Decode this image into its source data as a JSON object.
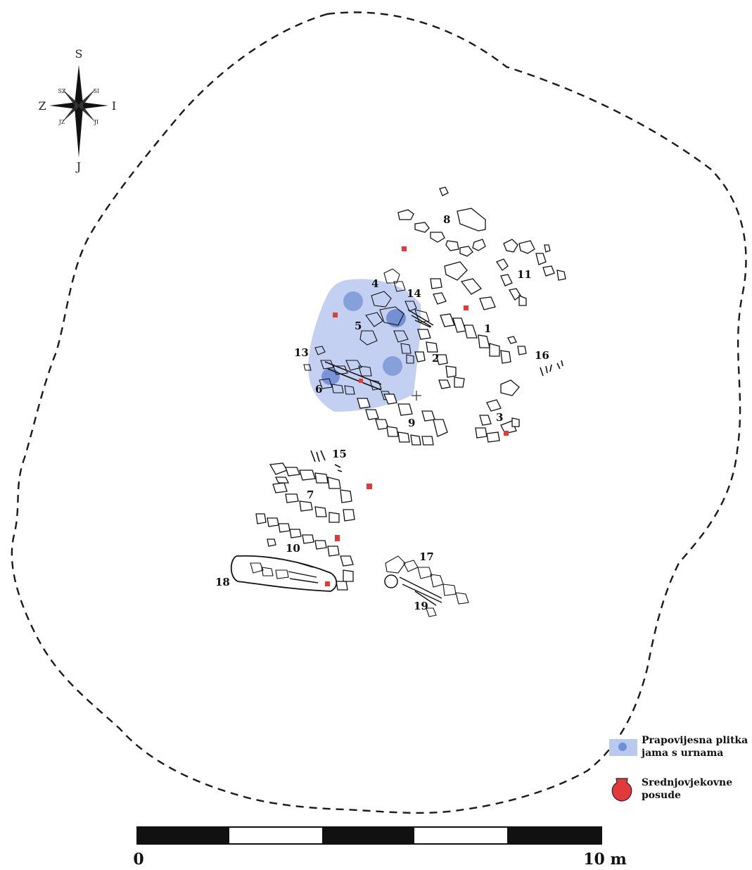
{
  "compass": {
    "north": "S",
    "south": "J",
    "west": "Z",
    "east": "I",
    "northwest": "SZ",
    "northeast": "SI",
    "southwest": "JZ",
    "southeast": "JI"
  },
  "grave_labels": [
    "1",
    "2",
    "3",
    "4",
    "5",
    "6",
    "7",
    "8",
    "9",
    "10",
    "11",
    "13",
    "14",
    "15",
    "16",
    "17",
    "18",
    "19"
  ],
  "legend": {
    "pit_line1": "Prapovijesna plitka",
    "pit_line2": "jama s urnama",
    "vessels_line1": "Srednjovjekovne",
    "vessels_line2": "posude",
    "pit_color": "#b8c8ef",
    "urn_color": "#6f8fd6",
    "vessel_color": "#e23a3a"
  },
  "scale": {
    "start_label": "0",
    "end_label": "10 m",
    "segments": 5
  }
}
